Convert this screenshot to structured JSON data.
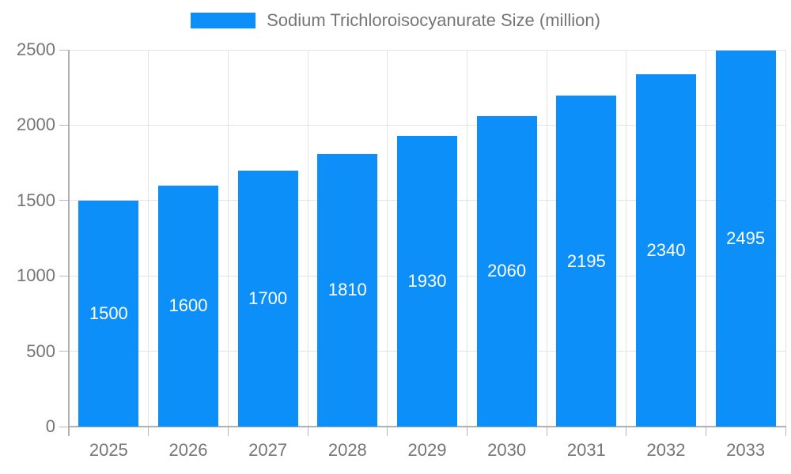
{
  "chart_data": {
    "type": "bar",
    "title": "Sodium Trichloroisocyanurate Size (million)",
    "categories": [
      "2025",
      "2026",
      "2027",
      "2028",
      "2029",
      "2030",
      "2031",
      "2032",
      "2033"
    ],
    "values": [
      1500,
      1600,
      1700,
      1810,
      1930,
      2060,
      2195,
      2340,
      2495
    ],
    "xlabel": "",
    "ylabel": "",
    "ylim": [
      0,
      2500
    ],
    "yticks": [
      0,
      500,
      1000,
      1500,
      2000,
      2500
    ],
    "grid": true,
    "legend_position": "top",
    "legend": {
      "label": "Sodium Trichloroisocyanurate Size (million)"
    },
    "colors": {
      "bar": "#0d8ff9",
      "bar_value_text": "#ffffff",
      "axis_text": "#757575",
      "axis_line": "#b0b0b0",
      "gridline": "#e3e3e3",
      "background": "#ffffff"
    }
  }
}
